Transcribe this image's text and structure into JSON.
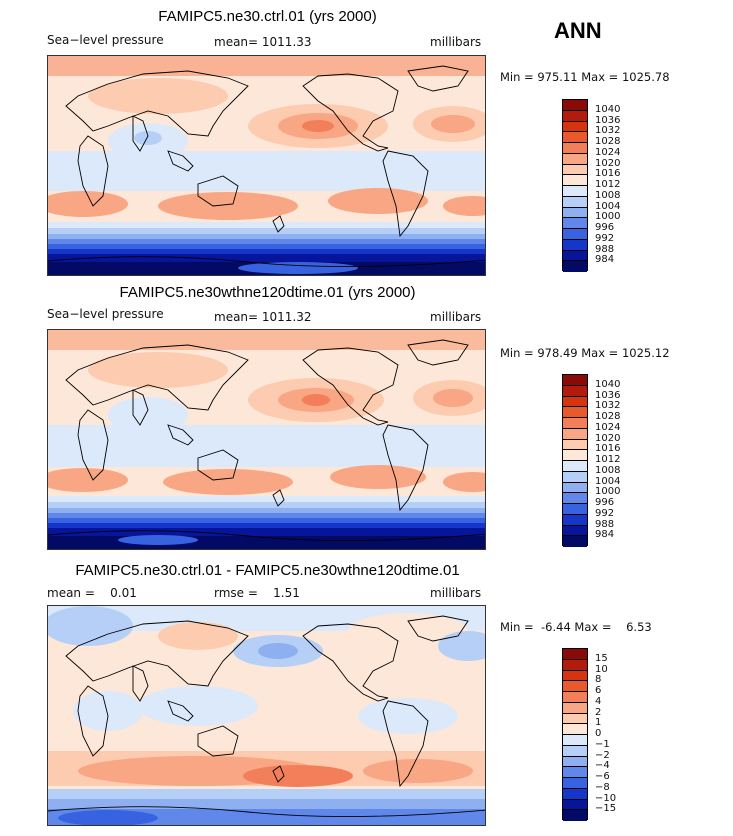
{
  "season": "ANN",
  "panels": [
    {
      "title": "FAMIPC5.ne30.ctrl.01 (yrs 2000)",
      "left_label": "Sea−level pressure",
      "mid_label": "mean= 1011.33",
      "right_label": "millibars",
      "minmax": "Min = 975.11 Max = 1025.78",
      "colorbar_levels": [
        "1040",
        "1036",
        "1032",
        "1028",
        "1024",
        "1020",
        "1016",
        "1012",
        "1008",
        "1004",
        "1000",
        "996",
        "992",
        "988",
        "984"
      ]
    },
    {
      "title": "FAMIPC5.ne30wthne120dtime.01 (yrs 2000)",
      "left_label": "Sea−level pressure",
      "mid_label": "mean= 1011.32",
      "right_label": "millibars",
      "minmax": "Min = 978.49 Max = 1025.12",
      "colorbar_levels": [
        "1040",
        "1036",
        "1032",
        "1028",
        "1024",
        "1020",
        "1016",
        "1012",
        "1008",
        "1004",
        "1000",
        "996",
        "992",
        "988",
        "984"
      ]
    },
    {
      "title": "FAMIPC5.ne30.ctrl.01 - FAMIPC5.ne30wthne120dtime.01",
      "left_label": "mean =    0.01",
      "mid_label": "rmse =    1.51",
      "right_label": "millibars",
      "minmax": "Min =  -6.44 Max =    6.53",
      "colorbar_levels": [
        "15",
        "10",
        "8",
        "6",
        "4",
        "2",
        "1",
        "0",
        "−1",
        "−2",
        "−4",
        "−6",
        "−8",
        "−10",
        "−15"
      ]
    }
  ],
  "colorbar_colors": [
    "#8a0a0a",
    "#b31b0c",
    "#d5340f",
    "#e85a2c",
    "#f27f59",
    "#f8a683",
    "#fccbb0",
    "#fde7d8",
    "#dce9fa",
    "#b6cff6",
    "#8eb0f0",
    "#5f88ea",
    "#3863e0",
    "#1636c9",
    "#06159a",
    "#020a66"
  ]
}
